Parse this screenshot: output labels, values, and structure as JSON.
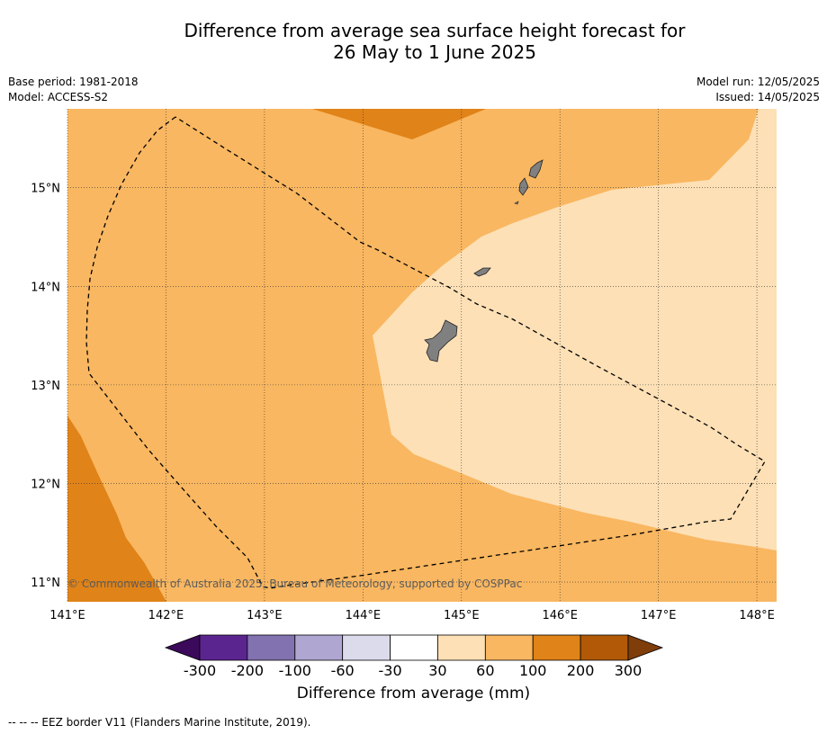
{
  "title_line1": "Difference from average sea surface height forecast for",
  "title_line2": "26 May to 1 June 2025",
  "meta_left": {
    "base_period": "Base period: 1981-2018",
    "model": "Model: ACCESS-S2"
  },
  "meta_right": {
    "model_run": "Model run: 12/05/2025",
    "issued": "Issued: 14/05/2025"
  },
  "map": {
    "lon_range": [
      141,
      148.2
    ],
    "lat_range": [
      10.8,
      15.8
    ],
    "lon_ticks": [
      "141°E",
      "142°E",
      "143°E",
      "144°E",
      "145°E",
      "146°E",
      "147°E",
      "148°E"
    ],
    "lat_ticks": [
      "11°N",
      "12°N",
      "13°N",
      "14°N",
      "15°N"
    ],
    "copyright": "© Commonwealth of Australia 2025, Bureau of Meteorology, supported by COSPPac",
    "fill_colors": {
      "30_60": "#fde0b6",
      "60_100": "#f9b761",
      "100_200": "#e08318",
      "land": "#808080"
    }
  },
  "colorbar": {
    "label": "Difference from average (mm)",
    "ticks": [
      "-300",
      "-200",
      "-100",
      "-60",
      "-30",
      "30",
      "60",
      "100",
      "200",
      "300"
    ],
    "colors": [
      "#3b0a5b",
      "#5b2590",
      "#8272b0",
      "#b0a6d2",
      "#dcdbec",
      "#ffffff",
      "#fde0b6",
      "#f9b761",
      "#e08318",
      "#b15906",
      "#7f3d0a"
    ]
  },
  "footer": "--  --  -- EEZ border V11 (Flanders Marine Institute, 2019)."
}
